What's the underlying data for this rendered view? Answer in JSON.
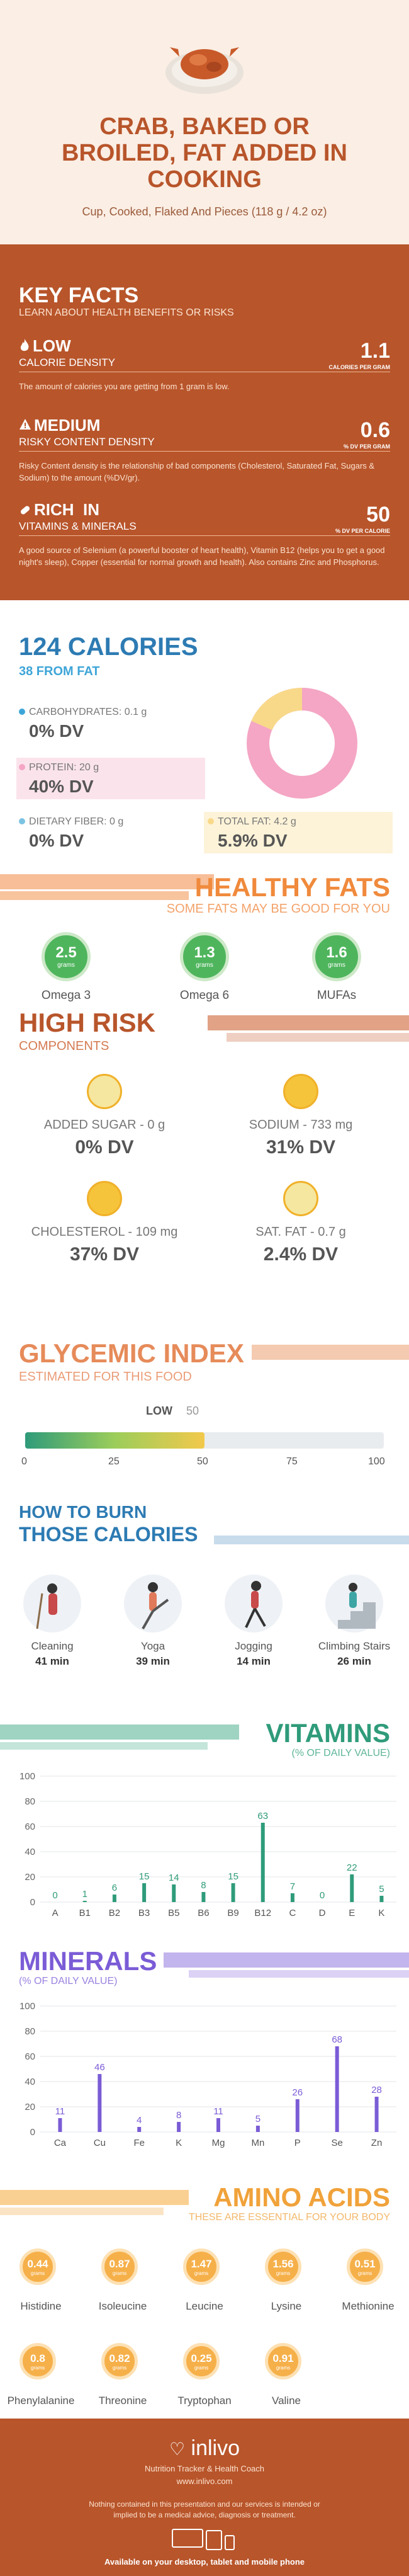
{
  "header": {
    "title_lines": [
      "CRAB, BAKED OR",
      "BROILED, FAT ADDED IN",
      "COOKING"
    ],
    "subtitle": "Cup, Cooked, Flaked And Pieces (118 g / 4.2 oz)"
  },
  "key_facts": {
    "title": "KEY FACTS",
    "subtitle": "LEARN ABOUT HEALTH BENEFITS OR RISKS",
    "items": [
      {
        "tag": "LOW",
        "label": "CALORIE DENSITY",
        "value": "1.1",
        "unit": "CALORIES PER GRAM",
        "desc": "The amount of calories you are getting from 1 gram is low.",
        "icon": "flame-icon"
      },
      {
        "tag": "MEDIUM",
        "label": "RISKY CONTENT DENSITY",
        "value": "0.6",
        "unit": "% DV PER GRAM",
        "desc": "Risky Content density is the relationship of bad components (Cholesterol, Saturated Fat, Sugars & Sodium) to the amount (%DV/gr).",
        "icon": "warning-icon"
      },
      {
        "tag": "RICH  IN",
        "label": "VITAMINS & MINERALS",
        "value": "50",
        "unit": "% DV PER CALORIE",
        "desc": "A good source of Selenium (a powerful booster of heart health), Vitamin B12 (helps you to get a good night's sleep), Copper (essential for normal growth and health). Also contains Zinc and Phosphorus.",
        "icon": "pill-icon"
      }
    ]
  },
  "calories": {
    "title": "124 CALORIES",
    "subtitle": "38 FROM FAT",
    "carbs_label": "CARBOHYDRATES: 0.1 g",
    "carbs_dv": "0% DV",
    "protein_label": "PROTEIN: 20 g",
    "protein_dv": "40% DV",
    "fiber_label": "DIETARY FIBER: 0 g",
    "fiber_dv": "0% DV",
    "fat_label": "TOTAL FAT: 4.2 g",
    "fat_dv": "5.9% DV",
    "colors": {
      "carbs": "#3ea5d8",
      "protein": "#f4a6c4",
      "fiber": "#7cc3e3",
      "fat": "#f8d98a"
    }
  },
  "healthy_fats": {
    "title": "HEALTHY FATS",
    "subtitle": "SOME FATS MAY BE GOOD FOR YOU",
    "unit": "grams",
    "items": [
      {
        "value": "2.5",
        "name": "Omega 3"
      },
      {
        "value": "1.3",
        "name": "Omega 6"
      },
      {
        "value": "1.6",
        "name": "MUFAs"
      }
    ]
  },
  "high_risk": {
    "title": "HIGH RISK",
    "subtitle": "COMPONENTS",
    "items": [
      {
        "label": "ADDED SUGAR - 0 g",
        "dv": "0% DV"
      },
      {
        "label": "SODIUM - 733 mg",
        "dv": "31% DV"
      },
      {
        "label": "CHOLESTEROL - 109 mg",
        "dv": "37% DV"
      },
      {
        "label": "SAT. FAT - 0.7 g",
        "dv": "2.4% DV"
      }
    ]
  },
  "glycemic": {
    "title": "GLYCEMIC INDEX",
    "subtitle": "ESTIMATED FOR THIS FOOD",
    "level_label": "LOW",
    "value": "50",
    "ticks": [
      "0",
      "25",
      "50",
      "75",
      "100"
    ]
  },
  "burn": {
    "title1": "HOW TO BURN",
    "title2": "THOSE CALORIES",
    "items": [
      {
        "name": "Cleaning",
        "time": "41 min",
        "icon": "cleaning-icon"
      },
      {
        "name": "Yoga",
        "time": "39 min",
        "icon": "yoga-icon"
      },
      {
        "name": "Jogging",
        "time": "14 min",
        "icon": "jogging-icon"
      },
      {
        "name": "Climbing Stairs",
        "time": "26 min",
        "icon": "stairs-icon"
      }
    ]
  },
  "chart_data": [
    {
      "type": "bar",
      "title": "VITAMINS",
      "subtitle": "(% OF DAILY VALUE)",
      "categories": [
        "A",
        "B1",
        "B2",
        "B3",
        "B5",
        "B6",
        "B9",
        "B12",
        "C",
        "D",
        "E",
        "K"
      ],
      "values": [
        0,
        1,
        6,
        15,
        14,
        8,
        15,
        63,
        7,
        0,
        22,
        5
      ],
      "ylim": [
        0,
        100
      ],
      "yticks": [
        "0",
        "20",
        "40",
        "60",
        "80",
        "100"
      ],
      "color": "#2f9b7a"
    },
    {
      "type": "bar",
      "title": "MINERALS",
      "subtitle": "(% OF DAILY VALUE)",
      "categories": [
        "Ca",
        "Cu",
        "Fe",
        "K",
        "Mg",
        "Mn",
        "P",
        "Se",
        "Zn"
      ],
      "values": [
        11,
        46,
        4,
        8,
        11,
        5,
        26,
        68,
        28
      ],
      "ylim": [
        0,
        100
      ],
      "yticks": [
        "0",
        "20",
        "40",
        "60",
        "80",
        "100"
      ],
      "color": "#7b5cd6"
    }
  ],
  "amino": {
    "title": "AMINO ACIDS",
    "subtitle": "THESE ARE ESSENTIAL FOR YOUR BODY",
    "unit": "grams",
    "items": [
      {
        "value": "0.44",
        "name": "Histidine"
      },
      {
        "value": "0.87",
        "name": "Isoleucine"
      },
      {
        "value": "1.47",
        "name": "Leucine"
      },
      {
        "value": "1.56",
        "name": "Lysine"
      },
      {
        "value": "0.51",
        "name": "Methionine"
      },
      {
        "value": "0.8",
        "name": "Phenylalanine"
      },
      {
        "value": "0.82",
        "name": "Threonine"
      },
      {
        "value": "0.25",
        "name": "Tryptophan"
      },
      {
        "value": "0.91",
        "name": "Valine"
      }
    ]
  },
  "footer": {
    "brand": "inlivo",
    "tagline": "Nutrition Tracker & Health Coach",
    "url": "www.inlivo.com",
    "disclaimer": "Nothing contained in this presentation and our services is intended or implied to be a medical advice, diagnosis or treatment.",
    "available": "Available on your desktop, tablet and mobile phone"
  }
}
